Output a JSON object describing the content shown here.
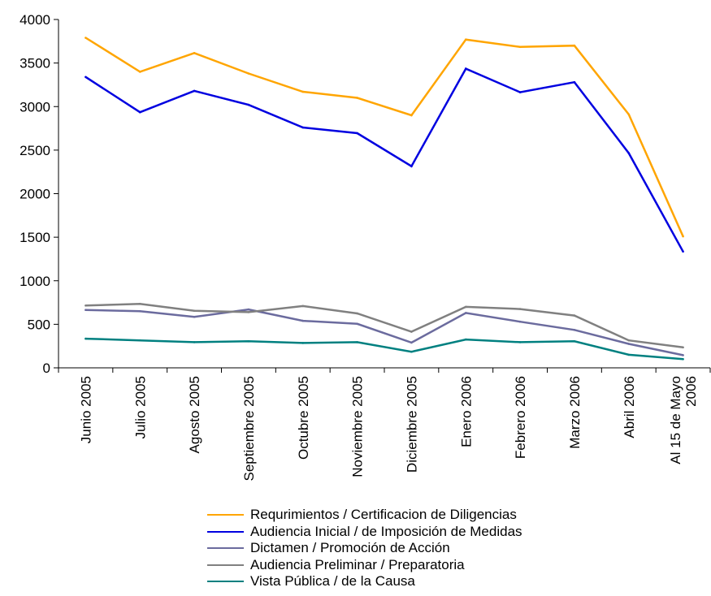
{
  "chart_data": {
    "type": "line",
    "title": "",
    "xlabel": "",
    "ylabel": "",
    "ylim": [
      0,
      4000
    ],
    "yticks": [
      0,
      500,
      1000,
      1500,
      2000,
      2500,
      3000,
      3500,
      4000
    ],
    "grid": false,
    "legend_position": "bottom",
    "categories": [
      [
        "Junio 2005"
      ],
      [
        "Julio 2005"
      ],
      [
        "Agosto 2005"
      ],
      [
        "Septiembre 2005"
      ],
      [
        "Octubre 2005"
      ],
      [
        "Noviembre 2005"
      ],
      [
        "Diciembre 2005"
      ],
      [
        "Enero 2006"
      ],
      [
        "Febrero 2006"
      ],
      [
        "Marzo 2006"
      ],
      [
        "Abril 2006"
      ],
      [
        "Al 15 de Mayo",
        "2006"
      ]
    ],
    "series": [
      {
        "name": "Requrimientos / Certificacion de Diligencias",
        "color": "#FFA500",
        "values": [
          3790,
          3400,
          3615,
          3380,
          3170,
          3100,
          2900,
          3770,
          3685,
          3700,
          2910,
          1510
        ]
      },
      {
        "name": "Audiencia Inicial / de Imposición de Medidas",
        "color": "#0000E0",
        "values": [
          3340,
          2935,
          3180,
          3020,
          2760,
          2695,
          2315,
          3435,
          3165,
          3280,
          2465,
          1335
        ]
      },
      {
        "name": "Dictamen / Promoción de Acción",
        "color": "#6B6B9E",
        "values": [
          665,
          650,
          585,
          670,
          540,
          505,
          290,
          630,
          530,
          435,
          275,
          145
        ]
      },
      {
        "name": "Audiencia Preliminar / Preparatoria",
        "color": "#808080",
        "values": [
          715,
          735,
          655,
          640,
          710,
          625,
          415,
          700,
          675,
          600,
          315,
          235
        ]
      },
      {
        "name": "Vista Pública / de la Causa",
        "color": "#008080",
        "values": [
          335,
          315,
          295,
          305,
          285,
          295,
          185,
          325,
          295,
          305,
          150,
          100
        ]
      }
    ]
  }
}
